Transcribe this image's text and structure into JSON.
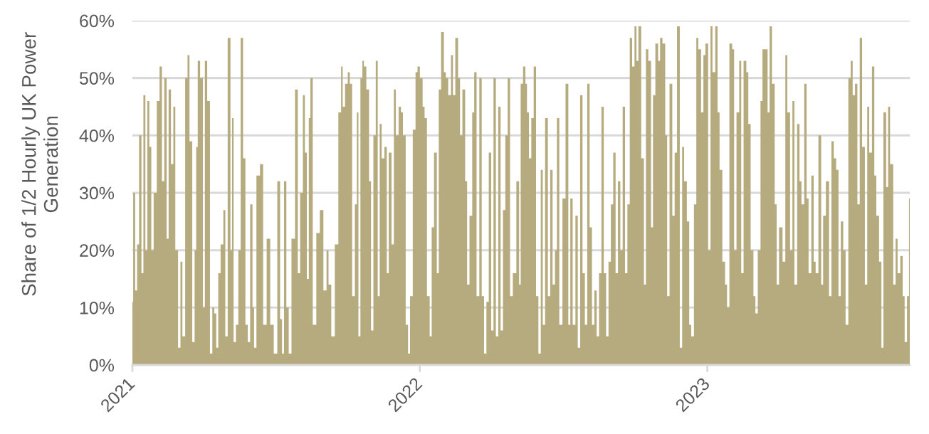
{
  "chart_data": {
    "type": "area",
    "ylabel": "Share of 1/2 Hourly UK Power\nGeneration",
    "color": "#b6ab7e",
    "grid": "y",
    "ylim": [
      0,
      60
    ],
    "yticks": [
      {
        "value": 0,
        "label": "0%"
      },
      {
        "value": 10,
        "label": "10%"
      },
      {
        "value": 20,
        "label": "20%"
      },
      {
        "value": 30,
        "label": "30%"
      },
      {
        "value": 40,
        "label": "40%"
      },
      {
        "value": 50,
        "label": "50%"
      },
      {
        "value": 60,
        "label": "60%"
      }
    ],
    "xlim": [
      "2021-01-01",
      "2023-09-15"
    ],
    "xticks": [
      "2021",
      "2022",
      "2023"
    ],
    "x": [
      "2021-01-01",
      "2021-01-03",
      "2021-01-06",
      "2021-01-08",
      "2021-01-11",
      "2021-01-14",
      "2021-01-16",
      "2021-01-19",
      "2021-01-21",
      "2021-01-24",
      "2021-01-26",
      "2021-01-30",
      "2021-02-03",
      "2021-02-06",
      "2021-02-09",
      "2021-02-12",
      "2021-02-15",
      "2021-02-17",
      "2021-02-21",
      "2021-02-23",
      "2021-02-26",
      "2021-03-02",
      "2021-03-04",
      "2021-03-07",
      "2021-03-11",
      "2021-03-13",
      "2021-03-16",
      "2021-03-20",
      "2021-03-22",
      "2021-03-24",
      "2021-03-26",
      "2021-03-30",
      "2021-04-02",
      "2021-04-04",
      "2021-04-08",
      "2021-04-11",
      "2021-04-14",
      "2021-04-16",
      "2021-04-19",
      "2021-04-21",
      "2021-04-25",
      "2021-04-28",
      "2021-04-30",
      "2021-05-04",
      "2021-05-07",
      "2021-05-08",
      "2021-05-11",
      "2021-05-14",
      "2021-05-17",
      "2021-05-20",
      "2021-05-23",
      "2021-05-26",
      "2021-05-29",
      "2021-06-01",
      "2021-06-04",
      "2021-06-05",
      "2021-06-10",
      "2021-06-14",
      "2021-06-18",
      "2021-06-23",
      "2021-06-27",
      "2021-07-02",
      "2021-07-06",
      "2021-07-09",
      "2021-07-11",
      "2021-07-14",
      "2021-07-17",
      "2021-07-20",
      "2021-07-24",
      "2021-07-29",
      "2021-07-31",
      "2021-08-04",
      "2021-08-07",
      "2021-08-09",
      "2021-08-12",
      "2021-08-14",
      "2021-08-16",
      "2021-08-20",
      "2021-08-25",
      "2021-08-29",
      "2021-09-03",
      "2021-09-06",
      "2021-09-08",
      "2021-09-13",
      "2021-09-17",
      "2021-09-22",
      "2021-09-24",
      "2021-09-26",
      "2021-09-30",
      "2021-10-03",
      "2021-10-05",
      "2021-10-09",
      "2021-10-12",
      "2021-10-14",
      "2021-10-16",
      "2021-10-19",
      "2021-10-21",
      "2021-10-23",
      "2021-10-27",
      "2021-10-30",
      "2021-11-01",
      "2021-11-05",
      "2021-11-07",
      "2021-11-10",
      "2021-11-12",
      "2021-11-15",
      "2021-11-19",
      "2021-11-21",
      "2021-11-24",
      "2021-11-28",
      "2021-11-30",
      "2021-12-03",
      "2021-12-07",
      "2021-12-09",
      "2021-12-12",
      "2021-12-16",
      "2021-12-18",
      "2021-12-21",
      "2021-12-25",
      "2021-12-28",
      "2021-12-30",
      "2022-01-03",
      "2022-01-06",
      "2022-01-08",
      "2022-01-12",
      "2022-01-15",
      "2022-01-17",
      "2022-01-21",
      "2022-01-24",
      "2022-01-26",
      "2022-01-30",
      "2022-02-02",
      "2022-02-04",
      "2022-02-08",
      "2022-02-11",
      "2022-02-13",
      "2022-02-17",
      "2022-02-20",
      "2022-02-22",
      "2022-02-26",
      "2022-03-01",
      "2022-03-03",
      "2022-03-07",
      "2022-03-10",
      "2022-03-12",
      "2022-03-16",
      "2022-03-19",
      "2022-03-22",
      "2022-03-25",
      "2022-03-28",
      "2022-03-31",
      "2022-04-03",
      "2022-04-06",
      "2022-04-09",
      "2022-04-12",
      "2022-04-15",
      "2022-04-18",
      "2022-04-21",
      "2022-04-24",
      "2022-04-27",
      "2022-05-01",
      "2022-05-06",
      "2022-05-08",
      "2022-05-10",
      "2022-05-14",
      "2022-05-16",
      "2022-05-18",
      "2022-05-21",
      "2022-05-24",
      "2022-05-27",
      "2022-05-30",
      "2022-06-02",
      "2022-06-05",
      "2022-06-07",
      "2022-06-11",
      "2022-06-14",
      "2022-06-17",
      "2022-06-20",
      "2022-06-23",
      "2022-06-25",
      "2022-06-29",
      "2022-07-03",
      "2022-07-07",
      "2022-07-10",
      "2022-07-12",
      "2022-07-16",
      "2022-07-19",
      "2022-07-22",
      "2022-07-25",
      "2022-07-28",
      "2022-07-31",
      "2022-08-03",
      "2022-08-06",
      "2022-08-09",
      "2022-08-12",
      "2022-08-15",
      "2022-08-18",
      "2022-08-21",
      "2022-08-24",
      "2022-08-27",
      "2022-08-30",
      "2022-09-02",
      "2022-09-05",
      "2022-09-08",
      "2022-09-11",
      "2022-09-14",
      "2022-09-17",
      "2022-09-20",
      "2022-09-23",
      "2022-09-26",
      "2022-09-29",
      "2022-10-02",
      "2022-10-04",
      "2022-10-07",
      "2022-10-11",
      "2022-10-14",
      "2022-10-16",
      "2022-10-20",
      "2022-10-23",
      "2022-10-25",
      "2022-10-29",
      "2022-11-01",
      "2022-11-03",
      "2022-11-07",
      "2022-11-10",
      "2022-11-12",
      "2022-11-16",
      "2022-11-19",
      "2022-11-22",
      "2022-11-25",
      "2022-11-29",
      "2022-12-01",
      "2022-12-04",
      "2022-12-08",
      "2022-12-10",
      "2022-12-13",
      "2022-12-17",
      "2022-12-19",
      "2022-12-22",
      "2022-12-26",
      "2022-12-28",
      "2022-12-31",
      "2023-01-04",
      "2023-01-06",
      "2023-01-09",
      "2023-01-13",
      "2023-01-15",
      "2023-01-18",
      "2023-01-22",
      "2023-01-25",
      "2023-01-27",
      "2023-01-31",
      "2023-02-03",
      "2023-02-05",
      "2023-02-09",
      "2023-02-12",
      "2023-02-14",
      "2023-02-18",
      "2023-02-21",
      "2023-02-23",
      "2023-02-27",
      "2023-03-02",
      "2023-03-04",
      "2023-03-08",
      "2023-03-11",
      "2023-03-13",
      "2023-03-17",
      "2023-03-20",
      "2023-03-22",
      "2023-03-26",
      "2023-03-29",
      "2023-03-31",
      "2023-04-04",
      "2023-04-09",
      "2023-04-11",
      "2023-04-14",
      "2023-04-18",
      "2023-04-20",
      "2023-04-23",
      "2023-04-27",
      "2023-04-29",
      "2023-05-02",
      "2023-05-06",
      "2023-05-08",
      "2023-05-11",
      "2023-05-15",
      "2023-05-17",
      "2023-05-20",
      "2023-05-24",
      "2023-05-27",
      "2023-05-29",
      "2023-06-03",
      "2023-06-06",
      "2023-06-09",
      "2023-06-12",
      "2023-06-15",
      "2023-06-18",
      "2023-06-21",
      "2023-06-24",
      "2023-06-27",
      "2023-07-01",
      "2023-07-03",
      "2023-07-06",
      "2023-07-09",
      "2023-07-12",
      "2023-07-15",
      "2023-07-18",
      "2023-07-22",
      "2023-07-24",
      "2023-07-27",
      "2023-07-31",
      "2023-08-02",
      "2023-08-05",
      "2023-08-09",
      "2023-08-11",
      "2023-08-14",
      "2023-08-18",
      "2023-08-19",
      "2023-08-23",
      "2023-08-27",
      "2023-08-29",
      "2023-09-01",
      "2023-09-05",
      "2023-09-07",
      "2023-09-10",
      "2023-09-13",
      "2023-09-15"
    ],
    "values": [
      11,
      30,
      13,
      21,
      40,
      16,
      47,
      20,
      46,
      38,
      20,
      30,
      46,
      52,
      32,
      50,
      22,
      48,
      35,
      45,
      20,
      3,
      18,
      5,
      50,
      54,
      39,
      4,
      20,
      38,
      53,
      50,
      10,
      53,
      46,
      2,
      10,
      9,
      3,
      16,
      21,
      27,
      5,
      57,
      20,
      43,
      4,
      7,
      20,
      57,
      36,
      7,
      4,
      28,
      10,
      3,
      33,
      35,
      7,
      22,
      7,
      2,
      32,
      8,
      2,
      32,
      10,
      2,
      22,
      48,
      16,
      30,
      47,
      37,
      15,
      43,
      50,
      7,
      23,
      27,
      13,
      20,
      14,
      5,
      21,
      44,
      52,
      45,
      49,
      51,
      49,
      12,
      28,
      44,
      5,
      50,
      53,
      52,
      48,
      32,
      6,
      40,
      53,
      12,
      42,
      36,
      38,
      16,
      37,
      21,
      48,
      40,
      45,
      44,
      40,
      7,
      2,
      12,
      41,
      51,
      52,
      50,
      45,
      43,
      12,
      5,
      24,
      37,
      16,
      48,
      58,
      51,
      50,
      47,
      54,
      47,
      57,
      50,
      40,
      48,
      32,
      14,
      26,
      44,
      51,
      12,
      50,
      12,
      2,
      11,
      37,
      6,
      50,
      5,
      45,
      6,
      27,
      40,
      50,
      12,
      16,
      32,
      14,
      49,
      52,
      49,
      44,
      36,
      43,
      52,
      12,
      2,
      34,
      7,
      43,
      12,
      34,
      14,
      20,
      43,
      7,
      29,
      49,
      7,
      29,
      7,
      26,
      3,
      47,
      16,
      7,
      49,
      24,
      7,
      13,
      5,
      16,
      45,
      16,
      5,
      18,
      28,
      37,
      16,
      32,
      20,
      45,
      16,
      28,
      57,
      52,
      59,
      53,
      59,
      36,
      14,
      55,
      53,
      24,
      47,
      56,
      53,
      57,
      56,
      40,
      12,
      49,
      26,
      37,
      59,
      3,
      38,
      32,
      25,
      7,
      5,
      28,
      57,
      55,
      44,
      54,
      56,
      20,
      59,
      51,
      59,
      44,
      34,
      18,
      14,
      10,
      56,
      55,
      20,
      44,
      53,
      16,
      53,
      51,
      42,
      20,
      12,
      9,
      20,
      46,
      55,
      55,
      44,
      59,
      49,
      28,
      14,
      24,
      18,
      54,
      44,
      20,
      46,
      14,
      42,
      32,
      28,
      49,
      29,
      16,
      33,
      18,
      16,
      40,
      14,
      26,
      32,
      12,
      39,
      36,
      34,
      12,
      25,
      20,
      7,
      50,
      53,
      47,
      49,
      28,
      57,
      38,
      14,
      45,
      37,
      52,
      33,
      26,
      18,
      3,
      44,
      31,
      45,
      35,
      14,
      22,
      16,
      19,
      12,
      4,
      12,
      29
    ]
  }
}
